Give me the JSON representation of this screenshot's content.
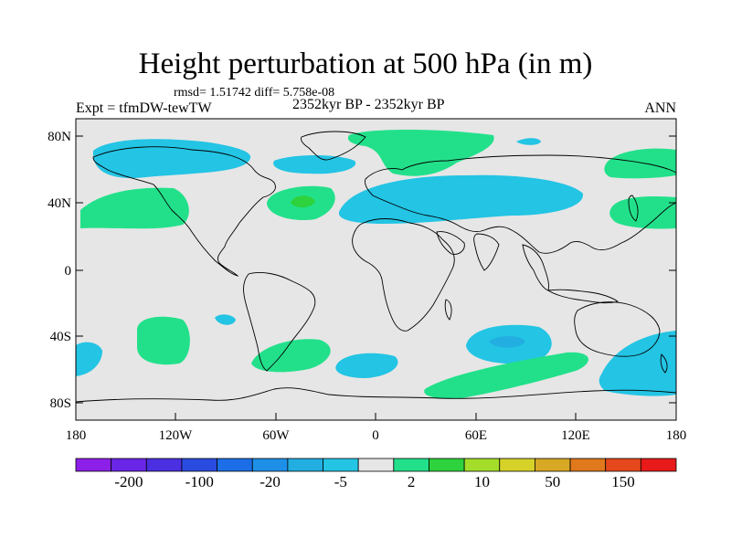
{
  "title": "Height perturbation at 500 hPa (in m)",
  "stats_line": "rmsd= 1.51742 diff= 5.758e-08",
  "left_label": "Expt = tfmDW-tewTW",
  "center_label": "2352kyr BP - 2352kyr BP",
  "right_label": "ANN",
  "lat_ticks": [
    "80N",
    "40N",
    "0",
    "40S",
    "80S"
  ],
  "lon_ticks": [
    "180",
    "120W",
    "60W",
    "0",
    "60E",
    "120E",
    "180"
  ],
  "colorbar": {
    "colors": [
      "#8c1fe8",
      "#6a26e6",
      "#4a30e0",
      "#2a4be0",
      "#1b6ee6",
      "#1e8fe6",
      "#22aee0",
      "#23c4e4",
      "#e6e6e6",
      "#22e08a",
      "#2ed23c",
      "#a4de2a",
      "#d6d22a",
      "#d8a824",
      "#e0781c",
      "#e4481c",
      "#e81a1a"
    ],
    "labels": [
      "-200",
      "-100",
      "-20",
      "-5",
      "2",
      "10",
      "50",
      "150"
    ]
  },
  "palette": {
    "neutral": "#e6e6e6",
    "neg_light": "#23c4e4",
    "neg_mid": "#22aee0",
    "pos_light": "#22e08a",
    "pos_mid": "#2ed23c"
  }
}
